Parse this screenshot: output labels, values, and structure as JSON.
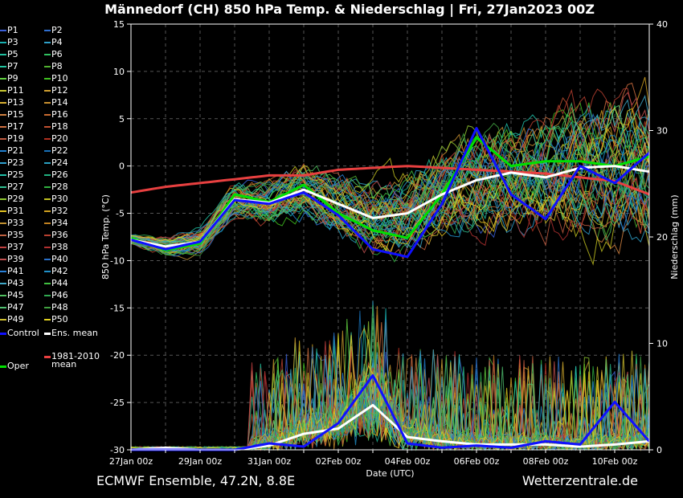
{
  "header": {
    "title": "Männedorf  (CH)  850 hPa Temp. & Niederschlag | Fri, 27Jan2023 00Z"
  },
  "footer": {
    "left": "ECMWF Ensemble, 47.2N, 8.8E",
    "right": "Wetterzentrale.de"
  },
  "colors": {
    "background": "#000000",
    "grid": "#555555",
    "control": "#1010ff",
    "oper": "#00e000",
    "ens_mean": "#ffffff",
    "climate_mean": "#e84040"
  },
  "legend": {
    "members": [
      "P1",
      "P2",
      "P3",
      "P4",
      "P5",
      "P6",
      "P7",
      "P8",
      "P9",
      "P10",
      "P11",
      "P12",
      "P13",
      "P14",
      "P15",
      "P16",
      "P17",
      "P18",
      "P19",
      "P20",
      "P21",
      "P22",
      "P23",
      "P24",
      "P25",
      "P26",
      "P27",
      "P28",
      "P29",
      "P30",
      "P31",
      "P32",
      "P33",
      "P34",
      "P35",
      "P36",
      "P37",
      "P38",
      "P39",
      "P40",
      "P41",
      "P42",
      "P43",
      "P44",
      "P45",
      "P46",
      "P47",
      "P48",
      "P49",
      "P50"
    ],
    "member_colors": [
      "#3a5fd8",
      "#2f6fd0",
      "#18b0b0",
      "#2fa0c8",
      "#20c0a0",
      "#30c060",
      "#22c5a0",
      "#50b030",
      "#60d040",
      "#40c020",
      "#c8c830",
      "#d0a030",
      "#d8b030",
      "#c89030",
      "#d08040",
      "#c86a30",
      "#d07040",
      "#c05030",
      "#c05a40",
      "#b03020",
      "#2080d0",
      "#1870b8",
      "#30a0d0",
      "#2aa0c0",
      "#20c0a8",
      "#20b080",
      "#30c090",
      "#30b040",
      "#90c830",
      "#c0c020",
      "#e0c020",
      "#d0a020",
      "#c09030",
      "#c08020",
      "#c06040",
      "#b84030",
      "#c04040",
      "#b03030",
      "#c05050",
      "#2a70c8",
      "#2880d8",
      "#2090c8",
      "#40a8c8",
      "#40c040",
      "#50c060",
      "#30a850",
      "#50c070",
      "#40a040",
      "#d0c030",
      "#e0d020"
    ],
    "control": "Control",
    "ens_mean": "Ens. mean",
    "climate_mean_1": "1981-2010",
    "climate_mean_2": "mean",
    "oper": "Oper"
  },
  "chart_data": {
    "type": "line",
    "x": [
      "27Jan 00z",
      "28Jan 00z",
      "29Jan 00z",
      "30Jan 00z",
      "31Jan 00z",
      "01Feb 00z",
      "02Feb 00z",
      "03Feb 00z",
      "04Feb 00z",
      "05Feb 00z",
      "06Feb 00z",
      "07Feb 00z",
      "08Feb 00z",
      "09Feb 00z",
      "10Feb 00z",
      "11Feb 00z"
    ],
    "x_ticks": [
      "27Jan 00z",
      "29Jan 00z",
      "31Jan 00z",
      "02Feb 00z",
      "04Feb 00z",
      "06Feb 00z",
      "08Feb 00z",
      "10Feb 00z"
    ],
    "xlabel": "Date (UTC)",
    "ylabel": "850 hPa Temp. (°C)",
    "ylim": [
      -30,
      15
    ],
    "y_ticks": [
      -30,
      -25,
      -20,
      -15,
      -10,
      -5,
      0,
      5,
      10,
      15
    ],
    "y2label": "Niederschlag (mm)",
    "y2lim": [
      0,
      40
    ],
    "y2_ticks": [
      0,
      10,
      20,
      30,
      40
    ],
    "grid": true,
    "legend_position": "left-outside",
    "series": [
      {
        "name": "Control",
        "axis": "temperature",
        "values": [
          -7.8,
          -8.8,
          -8.0,
          -3.6,
          -4.0,
          -2.8,
          -5.2,
          -8.8,
          -9.6,
          -4.0,
          4.0,
          -3.0,
          -5.6,
          0.0,
          -1.8,
          1.4
        ]
      },
      {
        "name": "Oper",
        "axis": "temperature",
        "values": [
          -7.6,
          -8.9,
          -8.2,
          -3.0,
          -3.8,
          -2.0,
          -5.0,
          -6.8,
          -7.6,
          -3.0,
          3.0,
          0.0,
          0.5,
          0.5,
          0.0,
          1.0
        ]
      },
      {
        "name": "Ens. mean",
        "axis": "temperature",
        "values": [
          -7.8,
          -8.5,
          -8.0,
          -3.5,
          -3.9,
          -2.5,
          -4.0,
          -5.5,
          -5.0,
          -3.0,
          -1.5,
          -0.7,
          -1.2,
          -0.2,
          0.0,
          -0.6
        ]
      },
      {
        "name": "1981-2010 mean",
        "axis": "temperature",
        "values": [
          -2.8,
          -2.2,
          -1.8,
          -1.4,
          -1.0,
          -1.0,
          -0.4,
          -0.2,
          0.0,
          -0.2,
          -0.4,
          -0.6,
          -0.8,
          -1.2,
          -1.6,
          -3.0
        ]
      },
      {
        "name": "Ens. mean",
        "axis": "precipitation",
        "values": [
          0.0,
          0.2,
          0.0,
          0.0,
          0.4,
          1.5,
          2.0,
          4.2,
          1.2,
          0.8,
          0.5,
          0.5,
          0.5,
          0.3,
          0.5,
          0.8
        ]
      },
      {
        "name": "Control",
        "axis": "precipitation",
        "values": [
          0.0,
          0.0,
          0.0,
          0.0,
          0.6,
          0.3,
          2.5,
          7.0,
          0.6,
          0.2,
          0.4,
          0.2,
          0.8,
          0.5,
          4.5,
          0.8
        ]
      }
    ]
  }
}
